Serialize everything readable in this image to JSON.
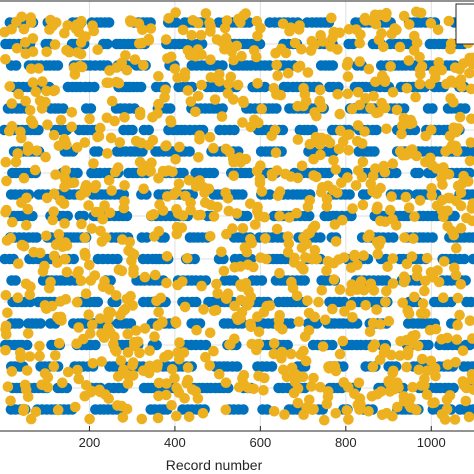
{
  "chart_data": {
    "type": "scatter",
    "title": "",
    "xlabel": "Record number",
    "ylabel": "",
    "xlim": [
      0,
      1100
    ],
    "ylim": [
      0,
      20
    ],
    "x_ticks": [
      200,
      400,
      600,
      800,
      1000
    ],
    "x_tick_labels": [
      "200",
      "400",
      "600",
      "800",
      "1000"
    ],
    "grid": true,
    "legend": "top-right",
    "series": [
      {
        "color": "#0072BD",
        "comment_free_generation": true,
        "points_per_level": 55,
        "levels": [
          1,
          2,
          3,
          4,
          5,
          6,
          7,
          8,
          9,
          10,
          11,
          12,
          13,
          14,
          15,
          16,
          17,
          18,
          19
        ]
      },
      {
        "color": "#EDB120",
        "points": 1100,
        "y_range": [
          0.5,
          19.5
        ]
      }
    ]
  }
}
